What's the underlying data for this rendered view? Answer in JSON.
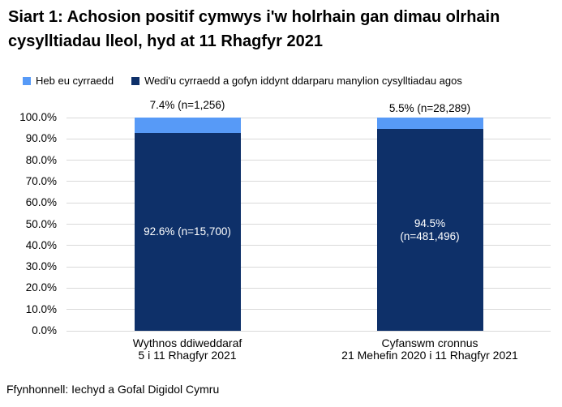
{
  "header": {
    "title": "Siart 1: Achosion positif cymwys i'w holrhain gan dimau olrhain cysylltiadau lleol, hyd at 11 Rhagfyr 2021"
  },
  "legend": {
    "items": [
      {
        "label": "Heb eu cyrraedd",
        "color": "#579AF7"
      },
      {
        "label": "Wedi'u cyrraedd a gofyn iddynt ddarparu manylion cysylltiadau agos",
        "color": "#0E3069"
      }
    ]
  },
  "footer": {
    "source": "Ffynhonnell: Iechyd a Gofal Digidol Cymru"
  },
  "chart_data": {
    "type": "bar",
    "stacked": true,
    "title": "Siart 1: Achosion positif cymwys i'w holrhain gan dimau olrhain cysylltiadau lleol, hyd at 11 Rhagfyr 2021",
    "categories": [
      [
        "Wythnos ddiweddaraf",
        "5 i 11 Rhagfyr 2021"
      ],
      [
        "Cyfanswm cronnus",
        "21 Mehefin 2020 i 11 Rhagfyr 2021"
      ]
    ],
    "series": [
      {
        "name": "Heb eu cyrraedd",
        "color": "#579AF7",
        "values": [
          7.4,
          5.5
        ],
        "counts": [
          "1,256",
          "28,289"
        ]
      },
      {
        "name": "Wedi'u cyrraedd a gofyn iddynt ddarparu manylion cysylltiadau agos",
        "color": "#0E3069",
        "values": [
          92.6,
          94.5
        ],
        "counts": [
          "15,700",
          "481,496"
        ]
      }
    ],
    "outside_labels": [
      "7.4% (n=1,256)",
      "5.5% (n=28,289)"
    ],
    "inside_labels": [
      [
        "92.6% (n=15,700)"
      ],
      [
        "94.5%",
        "(n=481,496)"
      ]
    ],
    "ylabel": "",
    "xlabel": "",
    "ylim": [
      0,
      100
    ],
    "grid": true,
    "legend_position": "top",
    "gridline_color": "#D9D9D9",
    "y_ticks": [
      {
        "value": 0,
        "label": "0.0%"
      },
      {
        "value": 10,
        "label": "10.0%"
      },
      {
        "value": 20,
        "label": "20.0%"
      },
      {
        "value": 30,
        "label": "30.0%"
      },
      {
        "value": 40,
        "label": "40.0%"
      },
      {
        "value": 50,
        "label": "50.0%"
      },
      {
        "value": 60,
        "label": "60.0%"
      },
      {
        "value": 70,
        "label": "70.0%"
      },
      {
        "value": 80,
        "label": "80.0%"
      },
      {
        "value": 90,
        "label": "90.0%"
      },
      {
        "value": 100,
        "label": "100.0%"
      }
    ]
  }
}
